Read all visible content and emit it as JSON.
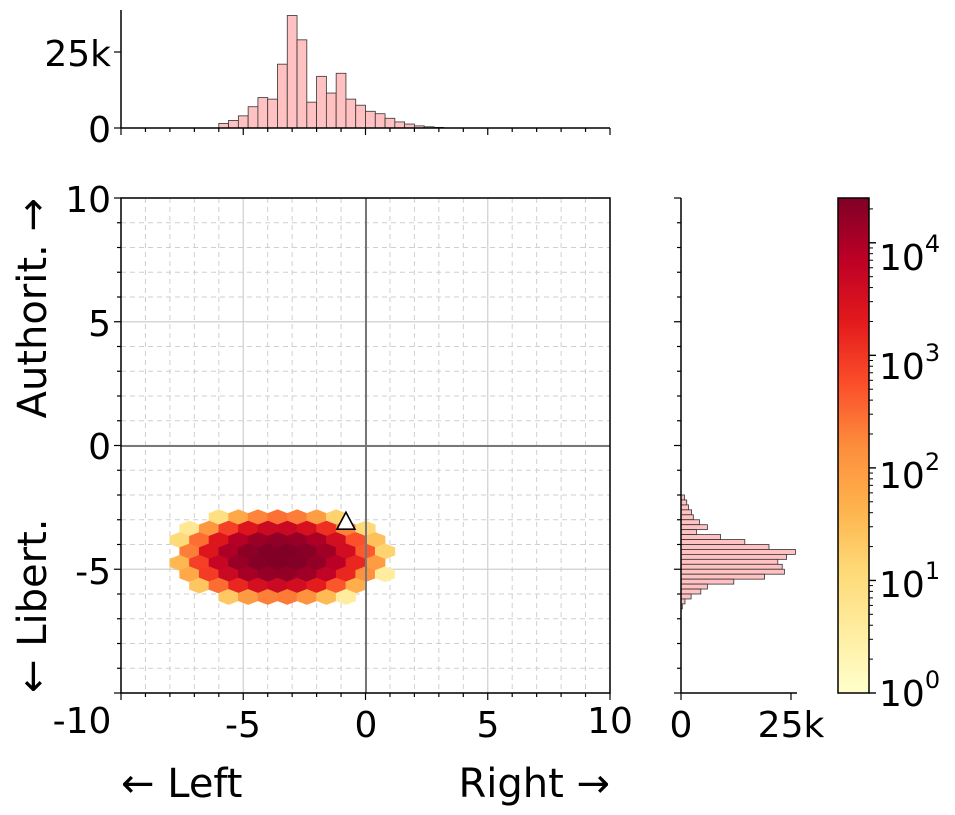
{
  "chart_data": {
    "type": "heatmap",
    "subtype": "hexbin-with-marginal-histograms",
    "title": "",
    "xlabel_left": "← Left",
    "xlabel_right": "Right →",
    "ylabel_bottom": "← Libert.",
    "ylabel_top": "Authorit. →",
    "xlim": [
      -10,
      10
    ],
    "ylim": [
      -10,
      10
    ],
    "xticks": [
      "-10",
      "-5",
      "0",
      "5",
      "10"
    ],
    "yticks": [
      "-5",
      "0",
      "5",
      "10"
    ],
    "grid": true,
    "colormap": "YlOrRd",
    "color_scale": "log",
    "colorbar_range": [
      1,
      25000
    ],
    "colorbar_ticks": [
      {
        "base": "10",
        "exp": "0"
      },
      {
        "base": "10",
        "exp": "1"
      },
      {
        "base": "10",
        "exp": "2"
      },
      {
        "base": "10",
        "exp": "3"
      },
      {
        "base": "10",
        "exp": "4"
      }
    ],
    "marker": {
      "shape": "triangle",
      "x": -0.8,
      "y": -3.1,
      "color": "#ffffff"
    },
    "top_histogram": {
      "axis": "x",
      "yticks": [
        "0",
        "25k"
      ],
      "bin_width": 0.4,
      "bins": [
        {
          "x": -5.8,
          "count": 1500
        },
        {
          "x": -5.4,
          "count": 2500
        },
        {
          "x": -5.0,
          "count": 4000
        },
        {
          "x": -4.6,
          "count": 7000
        },
        {
          "x": -4.2,
          "count": 10000
        },
        {
          "x": -3.8,
          "count": 9500
        },
        {
          "x": -3.4,
          "count": 21000
        },
        {
          "x": -3.0,
          "count": 37000
        },
        {
          "x": -2.6,
          "count": 29000
        },
        {
          "x": -2.2,
          "count": 8500
        },
        {
          "x": -1.8,
          "count": 17000
        },
        {
          "x": -1.4,
          "count": 11500
        },
        {
          "x": -1.0,
          "count": 18000
        },
        {
          "x": -0.6,
          "count": 9500
        },
        {
          "x": -0.2,
          "count": 7500
        },
        {
          "x": 0.2,
          "count": 5500
        },
        {
          "x": 0.6,
          "count": 4700
        },
        {
          "x": 1.0,
          "count": 3200
        },
        {
          "x": 1.4,
          "count": 2000
        },
        {
          "x": 1.8,
          "count": 1300
        },
        {
          "x": 2.2,
          "count": 700
        },
        {
          "x": 2.6,
          "count": 400
        },
        {
          "x": 3.0,
          "count": 200
        }
      ]
    },
    "right_histogram": {
      "axis": "y",
      "xticks": [
        "0",
        "25k"
      ],
      "bin_width": 0.2,
      "bins": [
        {
          "y": -2.1,
          "count": 800
        },
        {
          "y": -2.3,
          "count": 1300
        },
        {
          "y": -2.5,
          "count": 1700
        },
        {
          "y": -2.7,
          "count": 2400
        },
        {
          "y": -2.9,
          "count": 2800
        },
        {
          "y": -3.1,
          "count": 4200
        },
        {
          "y": -3.3,
          "count": 6000
        },
        {
          "y": -3.5,
          "count": 3500
        },
        {
          "y": -3.7,
          "count": 9000
        },
        {
          "y": -3.9,
          "count": 14500
        },
        {
          "y": -4.1,
          "count": 20000
        },
        {
          "y": -4.3,
          "count": 26000
        },
        {
          "y": -4.5,
          "count": 24000
        },
        {
          "y": -4.7,
          "count": 22000
        },
        {
          "y": -4.9,
          "count": 23000
        },
        {
          "y": -5.1,
          "count": 23500
        },
        {
          "y": -5.3,
          "count": 19000
        },
        {
          "y": -5.5,
          "count": 12000
        },
        {
          "y": -5.7,
          "count": 6000
        },
        {
          "y": -5.9,
          "count": 4500
        },
        {
          "y": -6.1,
          "count": 2300
        },
        {
          "y": -6.3,
          "count": 900
        },
        {
          "y": -6.5,
          "count": 300
        }
      ]
    },
    "hexbin": {
      "description_of_values": "counts per hex cell",
      "center": {
        "x": -3.5,
        "y": -4.5
      },
      "spread": {
        "x": 2.4,
        "y": 1.05
      },
      "peak": 25000,
      "extent": {
        "xmin": -7.6,
        "xmax": 3.0,
        "ymin": -7.0,
        "ymax": -0.4
      }
    }
  }
}
